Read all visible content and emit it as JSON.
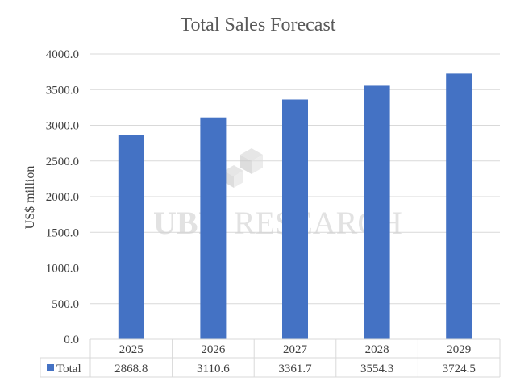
{
  "watermark": {
    "brand": "UBI RESEARCH",
    "prefix": "UBI",
    "suffix": "RESEARCH",
    "logo_icon": "cube-logo-icon"
  },
  "chart_data": {
    "type": "bar",
    "title": "Total Sales Forecast",
    "xlabel": "",
    "ylabel": "US$ million",
    "categories": [
      "2025",
      "2026",
      "2027",
      "2028",
      "2029"
    ],
    "series": [
      {
        "name": "Total",
        "values": [
          2868.8,
          3110.6,
          3361.7,
          3554.3,
          3724.5
        ],
        "color": "#4472c4"
      }
    ],
    "ylim": [
      0,
      4000
    ],
    "yticks": [
      0,
      500,
      1000,
      1500,
      2000,
      2500,
      3000,
      3500,
      4000
    ],
    "ytick_labels": [
      "0.0",
      "500.0",
      "1000.0",
      "1500.0",
      "2000.0",
      "2500.0",
      "3000.0",
      "3500.0",
      "4000.0"
    ],
    "grid": true,
    "gridline_color": "#d9d9d9",
    "data_table": {
      "series_label": "Total",
      "values": [
        "2868.8",
        "3110.6",
        "3361.7",
        "3554.3",
        "3724.5"
      ]
    },
    "legend": "data-table"
  }
}
